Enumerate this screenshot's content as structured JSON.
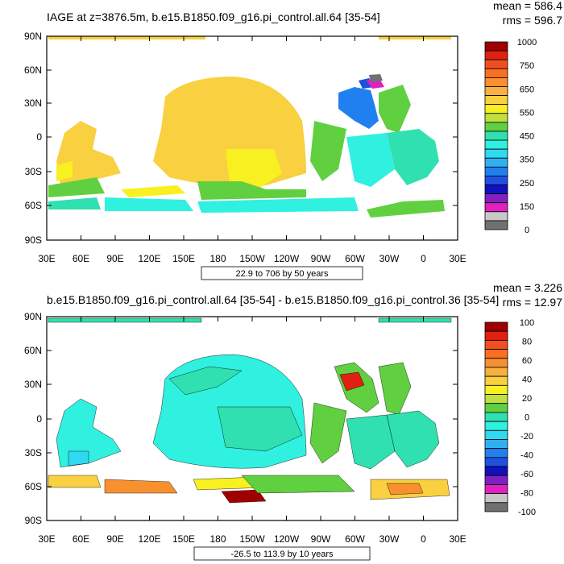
{
  "chart_data": [
    {
      "type": "heatmap",
      "title": "IAGE at z=3876.5m, b.e15.B1850.f09_g16.pi_control.all.64 [35-54]",
      "stats": {
        "mean": "mean = 586.4",
        "rms": "rms = 596.7"
      },
      "x_ticks": [
        "30E",
        "60E",
        "90E",
        "120E",
        "150E",
        "180",
        "150W",
        "120W",
        "90W",
        "60W",
        "30W",
        "0",
        "30E"
      ],
      "y_ticks": [
        "90N",
        "60N",
        "30N",
        "0",
        "30S",
        "60S",
        "90S"
      ],
      "contour_info": "22.9 to 706 by 50 years",
      "legend_labels": [
        "1000",
        "",
        "750",
        "",
        "650",
        "",
        "550",
        "",
        "450",
        "",
        "350",
        "",
        "250",
        "",
        "150",
        "",
        "0"
      ],
      "legend_colors": [
        "#a00000",
        "#e02010",
        "#f05020",
        "#f87020",
        "#f89030",
        "#f8b040",
        "#f8d040",
        "#f8f020",
        "#c0e040",
        "#60d040",
        "#30e0b0",
        "#30f0e0",
        "#30d8f0",
        "#30b0f0",
        "#2080f0",
        "#2050e0",
        "#1010c0",
        "#8020c0",
        "#e020c0",
        "#c8c8c8",
        "#707070"
      ],
      "basemap": "IAGE"
    },
    {
      "type": "heatmap",
      "title": "b.e15.B1850.f09_g16.pi_control.all.64 [35-54] - b.e15.B1850.f09_g16.pi_control.36 [35-54]",
      "stats": {
        "mean": "mean = 3.226",
        "rms": "rms = 12.97"
      },
      "x_ticks": [
        "30E",
        "60E",
        "90E",
        "120E",
        "150E",
        "180",
        "150W",
        "120W",
        "90W",
        "60W",
        "30W",
        "0",
        "30E"
      ],
      "y_ticks": [
        "90N",
        "60N",
        "30N",
        "0",
        "30S",
        "60S",
        "90S"
      ],
      "contour_info": "-26.5 to 113.9 by 10 years",
      "legend_labels": [
        "100",
        "80",
        "60",
        "40",
        "20",
        "0",
        "-20",
        "-40",
        "-60",
        "-80",
        "-100"
      ],
      "legend_colors": [
        "#a00000",
        "#e02010",
        "#f05020",
        "#f87020",
        "#f89030",
        "#f8b040",
        "#f8d040",
        "#f8f020",
        "#c0e040",
        "#60d040",
        "#30e0b0",
        "#30f0e0",
        "#30d8f0",
        "#30b0f0",
        "#2080f0",
        "#2050e0",
        "#1010c0",
        "#8020c0",
        "#e020c0",
        "#c8c8c8",
        "#707070"
      ],
      "basemap": "DIFF"
    }
  ]
}
